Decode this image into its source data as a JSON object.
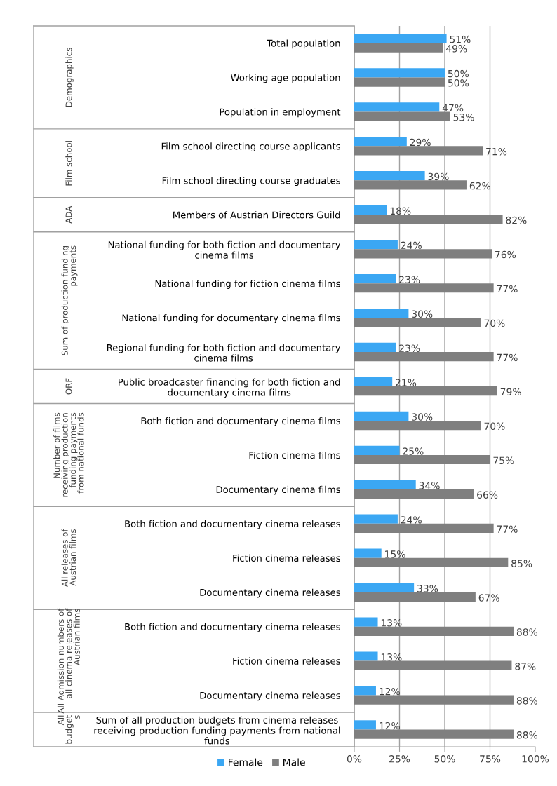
{
  "chart_data": {
    "type": "bar",
    "orientation": "horizontal",
    "categories": [
      "Total population",
      "Working age population",
      "Population in employment",
      "Film school directing course applicants",
      "Film school directing course graduates",
      "Members of Austrian Directors Guild",
      "National funding for both fiction and documentary\ncinema films",
      "National funding for fiction cinema films",
      "National funding for documentary cinema films",
      "Regional funding for both fiction and documentary\ncinema films",
      "Public broadcaster financing for both fiction and\ndocumentary cinema films",
      "Both fiction and documentary cinema films",
      "Fiction cinema films",
      "Documentary cinema films",
      "Both fiction and documentary cinema releases",
      "Fiction cinema releases",
      "Documentary cinema releases",
      "Both fiction and documentary cinema releases",
      "Fiction cinema releases",
      "Documentary cinema releases",
      "Sum of all production budgets from cinema releases\nreceiving production funding payments from national\nfunds"
    ],
    "series": [
      {
        "name": "Female",
        "color": "#3ba7f3",
        "values": [
          51,
          50,
          47,
          29,
          39,
          18,
          24,
          23,
          30,
          23,
          21,
          30,
          25,
          34,
          24,
          15,
          33,
          13,
          13,
          12,
          12
        ],
        "value_labels": [
          "51%",
          "50%",
          "47%",
          "29%",
          "39%",
          "18%",
          "24%",
          "23%",
          "30%",
          "23%",
          "21%",
          "30%",
          "25%",
          "34%",
          "24%",
          "15%",
          "33%",
          "13%",
          "13%",
          "12%",
          "12%"
        ]
      },
      {
        "name": "Male",
        "color": "#7f7f7f",
        "values": [
          49,
          50,
          53,
          71,
          62,
          82,
          76,
          77,
          70,
          77,
          79,
          70,
          75,
          66,
          77,
          85,
          67,
          88,
          87,
          88,
          88
        ],
        "value_labels": [
          "49%",
          "50%",
          "53%",
          "71%",
          "62%",
          "82%",
          "76%",
          "77%",
          "70%",
          "77%",
          "79%",
          "70%",
          "75%",
          "66%",
          "77%",
          "85%",
          "67%",
          "88%",
          "87%",
          "88%",
          "88%"
        ]
      }
    ],
    "xlim": [
      0,
      100
    ],
    "xticks": [
      {
        "value": 0,
        "label": "0%"
      },
      {
        "value": 25,
        "label": "25%"
      },
      {
        "value": 50,
        "label": "50%"
      },
      {
        "value": 75,
        "label": "75%"
      },
      {
        "value": 100,
        "label": "100%"
      }
    ],
    "grid": "x",
    "legend": "bottom",
    "annotations": [
      "Demographics",
      "Film school",
      "ADA",
      "Sum of production funding\npayments",
      "ORF",
      "Number of films\nreceiving production\nfunding payments\nfrom national funds",
      "All releases of\nAustrian films",
      "All Admission numbers of\nall cinema releases of\nAustrian films",
      "All\nbudget\ns"
    ]
  }
}
